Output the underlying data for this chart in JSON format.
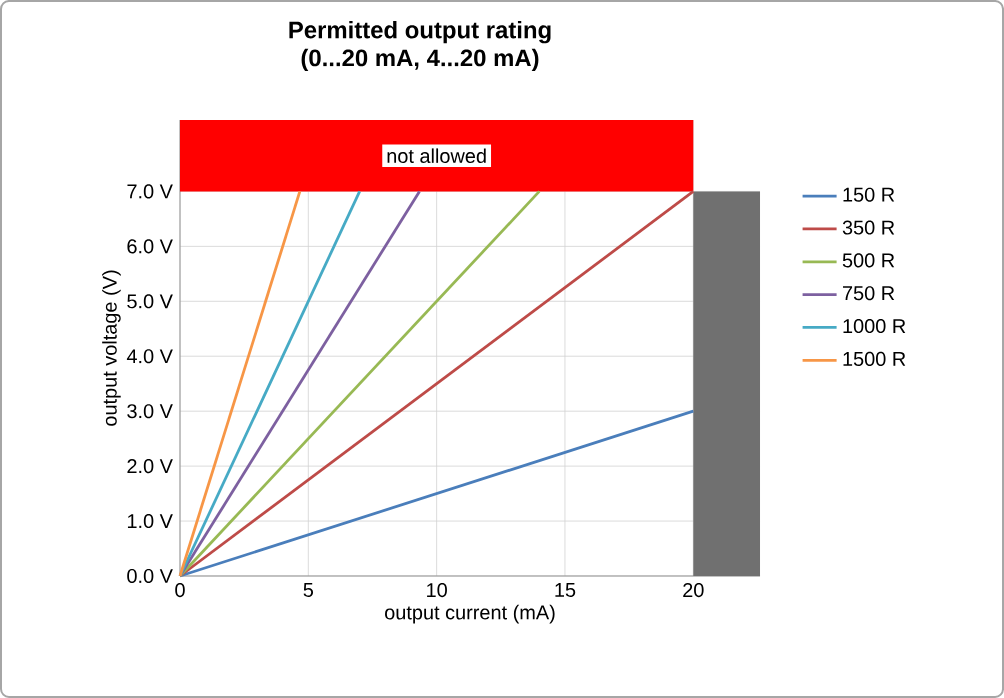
{
  "chart_data": {
    "type": "line",
    "title": "Permitted output rating",
    "subtitle": "(0...20 mA, 4...20 mA)",
    "xlabel": "output current (mA)",
    "ylabel": "output voltage (V)",
    "xlim": [
      0,
      22.6
    ],
    "xticks": [
      0,
      5,
      10,
      15,
      20
    ],
    "ylim": [
      0,
      8.3
    ],
    "yticks": [
      {
        "value": 0,
        "label": "0.0 V"
      },
      {
        "value": 1,
        "label": "1.0 V"
      },
      {
        "value": 2,
        "label": "2.0 V"
      },
      {
        "value": 3,
        "label": "3.0 V"
      },
      {
        "value": 4,
        "label": "4.0 V"
      },
      {
        "value": 5,
        "label": "5.0 V"
      },
      {
        "value": 6,
        "label": "6.0 V"
      },
      {
        "value": 7,
        "label": "7.0 V"
      }
    ],
    "grid": true,
    "legend": "right",
    "bands": [
      {
        "axis": "y",
        "from": 7,
        "to": 8.3,
        "label": "not allowed",
        "color": "#ff0000"
      },
      {
        "axis": "x",
        "from": 20,
        "to": 22.6,
        "color": "#707070"
      }
    ],
    "series": [
      {
        "name": "150 R",
        "color": "#4a7ebb",
        "x": [
          0,
          20
        ],
        "values": [
          0,
          3
        ]
      },
      {
        "name": "350 R",
        "color": "#be4b48",
        "x": [
          0,
          20
        ],
        "values": [
          0,
          7
        ]
      },
      {
        "name": "500 R",
        "color": "#98b954",
        "x": [
          0,
          14
        ],
        "values": [
          0,
          7
        ]
      },
      {
        "name": "750 R",
        "color": "#7d60a0",
        "x": [
          0,
          9.33
        ],
        "values": [
          0,
          7
        ]
      },
      {
        "name": "1000 R",
        "color": "#46aac5",
        "x": [
          0,
          7
        ],
        "values": [
          0,
          7
        ]
      },
      {
        "name": "1500 R",
        "color": "#f79646",
        "x": [
          0,
          4.67
        ],
        "values": [
          0,
          7
        ]
      }
    ]
  }
}
